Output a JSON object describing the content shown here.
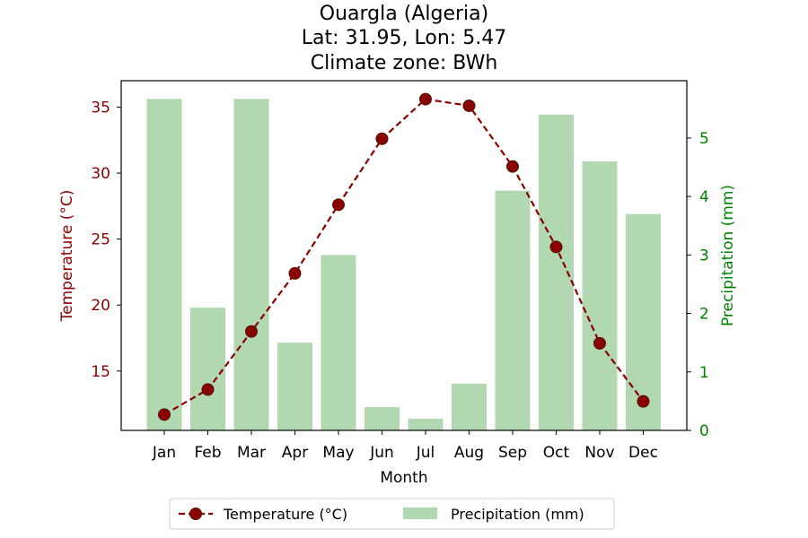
{
  "chart_data": {
    "type": "bar",
    "title_lines": [
      "Ouargla (Algeria)",
      "Lat: 31.95, Lon: 5.47",
      "Climate zone: BWh"
    ],
    "xlabel": "Month",
    "ylabel_left": "Temperature (°C)",
    "ylabel_right": "Precipitation (mm)",
    "categories": [
      "Jan",
      "Feb",
      "Mar",
      "Apr",
      "May",
      "Jun",
      "Jul",
      "Aug",
      "Sep",
      "Oct",
      "Nov",
      "Dec"
    ],
    "left_axis": {
      "range": [
        10.5,
        37
      ],
      "ticks": [
        15,
        20,
        25,
        30,
        35
      ]
    },
    "right_axis": {
      "range": [
        0,
        5.98
      ],
      "ticks": [
        0,
        1,
        2,
        3,
        4,
        5
      ]
    },
    "grid": false,
    "legend_position": "bottom-center",
    "series": [
      {
        "name": "Temperature (°C)",
        "kind": "line",
        "axis": "left",
        "values": [
          11.7,
          13.6,
          18.0,
          22.4,
          27.6,
          32.6,
          35.6,
          35.1,
          30.5,
          24.4,
          17.1,
          12.7
        ],
        "color": "#8b0000",
        "marker_fill": "#8b0000",
        "line_style": "dashed"
      },
      {
        "name": "Precipitation (mm)",
        "kind": "bar",
        "axis": "right",
        "values": [
          5.67,
          2.1,
          5.67,
          1.5,
          3.0,
          0.4,
          0.2,
          0.8,
          4.1,
          5.4,
          4.6,
          3.7
        ],
        "color": "#b2d8b2"
      }
    ],
    "colors": {
      "temperature_axis": "#8b0000",
      "precipitation_axis": "#008000"
    }
  }
}
